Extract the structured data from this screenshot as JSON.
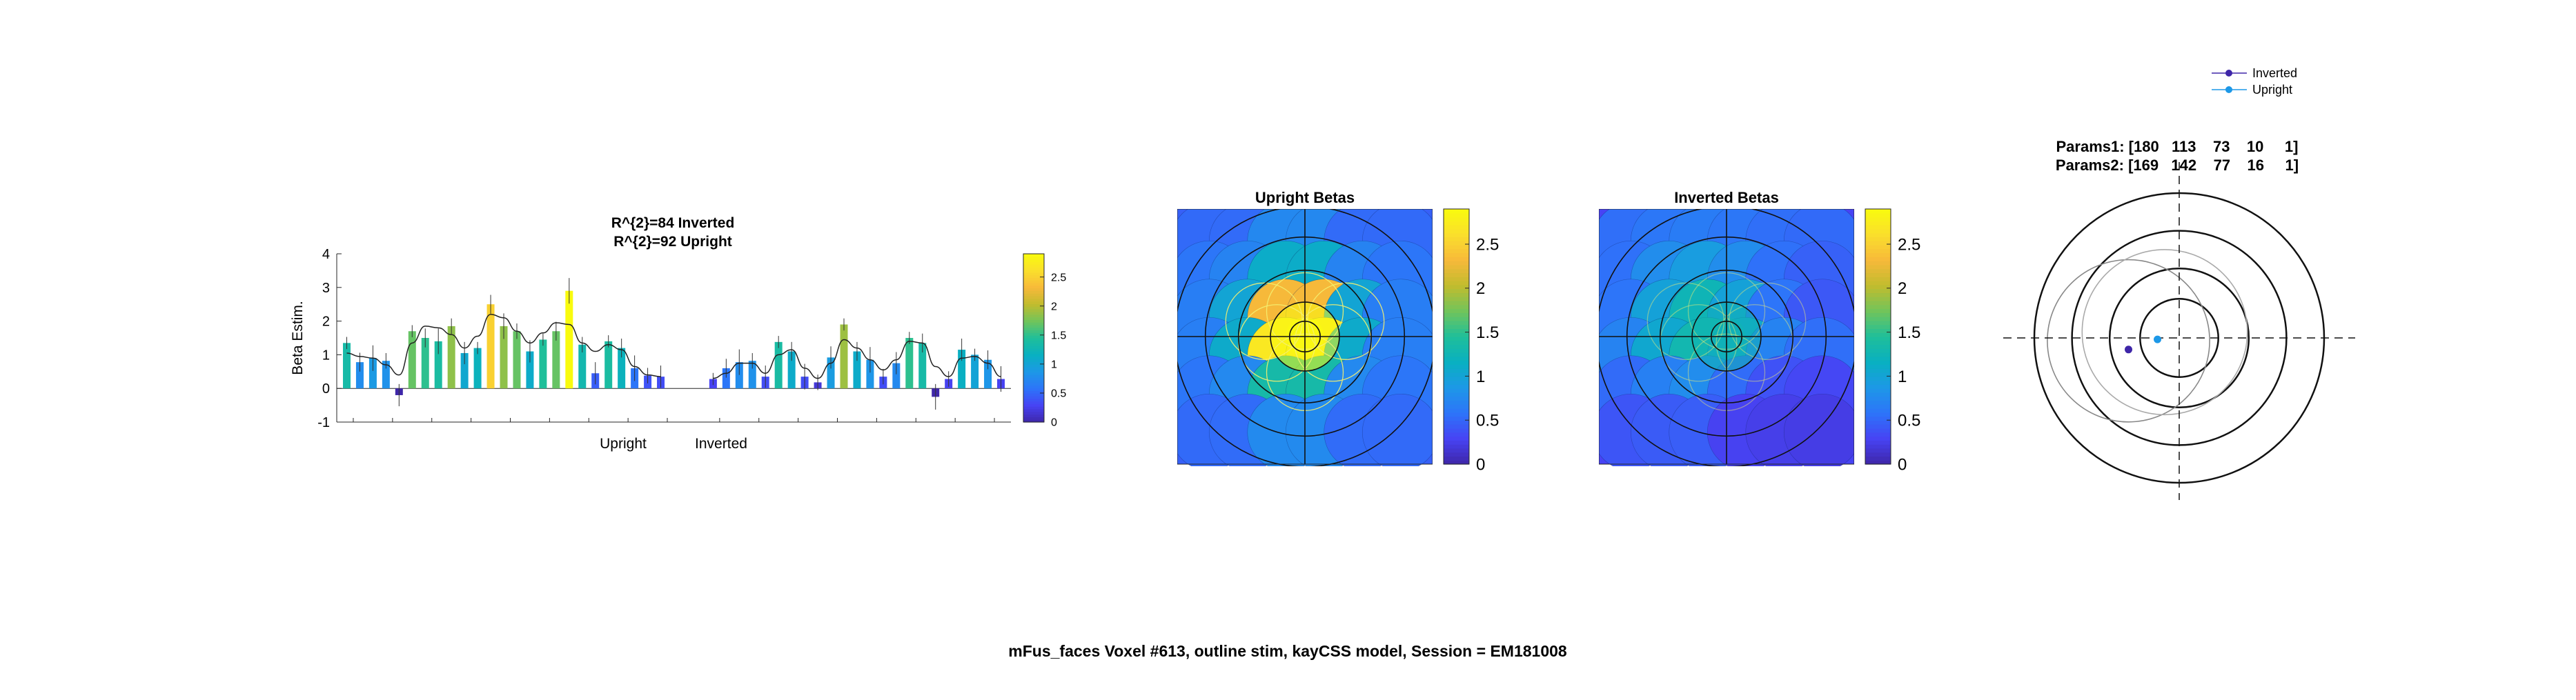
{
  "figure_caption": "mFus_faces Voxel #613, outline stim, kayCSS model, Session = EM181008",
  "colormap": [
    "#3e26a8",
    "#4743f4",
    "#2d74f9",
    "#1d98e7",
    "#09b0c1",
    "#1fbf9a",
    "#71c45b",
    "#c1bc2e",
    "#f7b93a",
    "#fadf2c",
    "#f9fb0e"
  ],
  "chart_data": [
    {
      "type": "bar",
      "title_lines": [
        "R^{2}=84 Inverted",
        "R^{2}=92 Upright"
      ],
      "ylabel": "Beta Estim.",
      "ylim": [
        -1,
        4
      ],
      "yticks": [
        -1,
        0,
        1,
        2,
        3,
        4
      ],
      "group_labels": [
        "Upright",
        "Inverted"
      ],
      "colorbar": {
        "range": [
          0,
          2.9
        ],
        "ticks": [
          0,
          0.5,
          1,
          1.5,
          2,
          2.5
        ]
      },
      "series": [
        {
          "name": "Upright",
          "values": [
            1.35,
            0.78,
            0.9,
            0.82,
            -0.2,
            1.7,
            1.5,
            1.4,
            1.85,
            1.05,
            1.2,
            2.5,
            1.85,
            1.7,
            1.1,
            1.45,
            1.7,
            2.9,
            1.3,
            0.45,
            1.4,
            1.2,
            0.6,
            0.38,
            0.35
          ]
        },
        {
          "name": "Inverted",
          "values": [
            0.28,
            0.6,
            0.78,
            0.82,
            0.35,
            1.38,
            1.1,
            0.35,
            0.18,
            0.92,
            1.9,
            1.1,
            0.85,
            0.35,
            0.75,
            1.5,
            1.35,
            -0.25,
            0.28,
            1.15,
            1.0,
            0.85,
            0.28
          ]
        }
      ],
      "fit_upright": [
        1.05,
        0.95,
        0.9,
        0.7,
        0.4,
        1.35,
        1.85,
        1.8,
        1.6,
        1.2,
        1.55,
        2.2,
        2.1,
        1.7,
        1.35,
        1.65,
        1.95,
        1.9,
        1.35,
        1.1,
        1.3,
        1.15,
        0.65,
        0.4,
        0.35
      ],
      "fit_inverted": [
        0.3,
        0.45,
        0.75,
        0.75,
        0.45,
        1.0,
        1.15,
        0.6,
        0.3,
        0.75,
        1.45,
        1.2,
        0.85,
        0.55,
        0.85,
        1.4,
        1.35,
        0.65,
        0.35,
        0.9,
        0.95,
        0.75,
        0.35
      ]
    },
    {
      "type": "heatmap",
      "title": "Upright Betas",
      "colorbar": {
        "range": [
          0,
          2.9
        ],
        "ticks": [
          0,
          0.5,
          1,
          1.5,
          2,
          2.5
        ]
      }
    },
    {
      "type": "heatmap",
      "title": "Inverted Betas",
      "colorbar": {
        "range": [
          0,
          2.9
        ],
        "ticks": [
          0,
          0.5,
          1,
          1.5,
          2,
          2.5
        ]
      }
    },
    {
      "type": "scatter",
      "param_lines": [
        "Params1: [180   113    73    10     1]",
        "Params2: [169   142    77    16     1]"
      ],
      "legend": [
        "Inverted",
        "Upright"
      ],
      "legend_placement": "top-right",
      "series": [
        {
          "name": "Inverted",
          "x": -0.35,
          "y": -0.08,
          "color": "#3e26a8"
        },
        {
          "name": "Upright",
          "x": -0.15,
          "y": -0.01,
          "color": "#1d98e7"
        }
      ]
    }
  ]
}
